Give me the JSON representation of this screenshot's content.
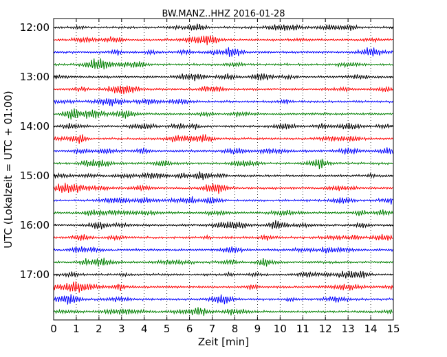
{
  "chart_data": {
    "type": "line",
    "title": "BW.MANZ..HHZ 2016-01-28",
    "xlabel": "Zeit  [min]",
    "ylabel": "UTC (Lokalzeit = UTC + 01:00)",
    "xlim": [
      0,
      15
    ],
    "x_ticks": [
      0,
      1,
      2,
      3,
      4,
      5,
      6,
      7,
      8,
      9,
      10,
      11,
      12,
      13,
      14,
      15
    ],
    "x_tick_labels": [
      "0",
      "1",
      "2",
      "3",
      "4",
      "5",
      "6",
      "7",
      "8",
      "9",
      "10",
      "11",
      "12",
      "13",
      "14",
      "15"
    ],
    "y_tick_labels": [
      "12:00",
      "13:00",
      "14:00",
      "15:00",
      "16:00",
      "17:00"
    ],
    "row_start_times": [
      "12:00",
      "12:15",
      "12:30",
      "12:45",
      "13:00",
      "13:15",
      "13:30",
      "13:45",
      "14:00",
      "14:15",
      "14:30",
      "14:45",
      "15:00",
      "15:15",
      "15:30",
      "15:45",
      "16:00",
      "16:15",
      "16:30",
      "16:45",
      "17:00",
      "17:15",
      "17:30",
      "17:45"
    ],
    "trace_colors": [
      "#000000",
      "#ff0000",
      "#0000ff",
      "#008000"
    ],
    "grid": "vertical dotted",
    "trace_minutes_per_row": 15
  }
}
